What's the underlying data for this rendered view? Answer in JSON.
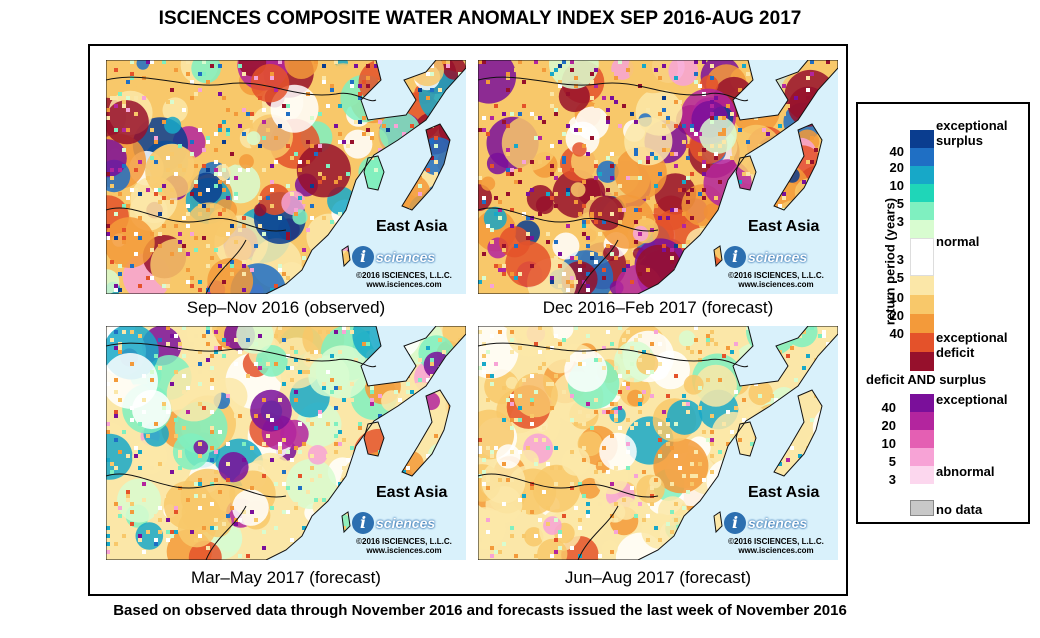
{
  "title": "ISCIENCES COMPOSITE WATER ANOMALY INDEX SEP 2016-AUG 2017",
  "footnote": "Based on observed data through November 2016 and forecasts issued the last week of November 2016",
  "panels": [
    {
      "caption": "Sep–Nov 2016 (observed)",
      "region": "East Asia",
      "logo": "sciences",
      "logo_i": "i",
      "copyright": "©2016 ISCIENCES, L.L.C.",
      "url": "www.isciences.com"
    },
    {
      "caption": "Dec 2016–Feb 2017 (forecast)",
      "region": "East Asia",
      "logo": "sciences",
      "logo_i": "i",
      "copyright": "©2016 ISCIENCES, L.L.C.",
      "url": "www.isciences.com"
    },
    {
      "caption": "Mar–May 2017 (forecast)",
      "region": "East Asia",
      "logo": "sciences",
      "logo_i": "i",
      "copyright": "©2016 ISCIENCES, L.L.C.",
      "url": "www.isciences.com"
    },
    {
      "caption": "Jun–Aug 2017 (forecast)",
      "region": "East Asia",
      "logo": "sciences",
      "logo_i": "i",
      "copyright": "©2016 ISCIENCES, L.L.C.",
      "url": "www.isciences.com"
    }
  ],
  "legend": {
    "axis_label": "return period (years)",
    "exceptional_surplus": "exceptional\nsurplus",
    "normal": "normal",
    "exceptional_deficit": "exceptional\ndeficit",
    "both_title": "deficit AND surplus",
    "both_exceptional": "exceptional",
    "both_abnormal": "abnormal",
    "no_data": "no data",
    "surplus_ticks": [
      "40",
      "20",
      "10",
      "5",
      "3"
    ],
    "deficit_ticks": [
      "3",
      "5",
      "10",
      "20",
      "40"
    ],
    "both_ticks": [
      "40",
      "20",
      "10",
      "5",
      "3"
    ],
    "surplus_colors": [
      "#0a3d8f",
      "#1f6fc4",
      "#17a8c8",
      "#1fd6b8",
      "#7ff0c0",
      "#d8fcd0"
    ],
    "deficit_colors": [
      "#fbe7a8",
      "#f8c86a",
      "#f39a3a",
      "#e4522a",
      "#96102c"
    ],
    "both_colors": [
      "#7a0f9a",
      "#b3259e",
      "#e45fb3",
      "#f7a3d6",
      "#fcd7ee"
    ],
    "no_data_color": "#c8c8c8",
    "ocean_color": "#d9f1fb"
  }
}
